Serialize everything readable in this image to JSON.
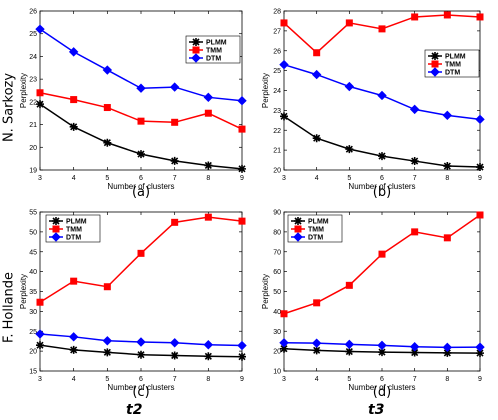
{
  "row_labels": [
    "N. Sarkozy",
    "F. Hollande"
  ],
  "column_labels": [
    "t2",
    "t3"
  ],
  "colors": {
    "PLMM": "#000000",
    "TMM": "#ff0000",
    "DTM": "#0000ff"
  },
  "chart_data": [
    {
      "type": "line",
      "panel_label": "(a)",
      "xlabel": "Number of clusters",
      "ylabel": "Perplexity",
      "x": [
        3,
        4,
        5,
        6,
        7,
        8,
        9
      ],
      "xlim": [
        3,
        9
      ],
      "ylim": [
        19,
        26
      ],
      "yticks": [
        19,
        20,
        21,
        22,
        23,
        24,
        25,
        26
      ],
      "legend_position": "top-right",
      "series": [
        {
          "name": "PLMM",
          "marker": "star",
          "values": [
            21.9,
            20.9,
            20.2,
            19.7,
            19.4,
            19.2,
            19.05
          ]
        },
        {
          "name": "TMM",
          "marker": "square",
          "values": [
            22.4,
            22.1,
            21.75,
            21.15,
            21.1,
            21.5,
            20.8
          ]
        },
        {
          "name": "DTM",
          "marker": "diamond",
          "values": [
            25.2,
            24.2,
            23.4,
            22.6,
            22.65,
            22.2,
            22.05
          ]
        }
      ]
    },
    {
      "type": "line",
      "panel_label": "(b)",
      "xlabel": "Number of clusters",
      "ylabel": "Perplexity",
      "x": [
        3,
        4,
        5,
        6,
        7,
        8,
        9
      ],
      "xlim": [
        3,
        9
      ],
      "ylim": [
        20,
        28
      ],
      "yticks": [
        20,
        21,
        22,
        23,
        24,
        25,
        26,
        27,
        28
      ],
      "legend_position": "middle-right",
      "series": [
        {
          "name": "PLMM",
          "marker": "star",
          "values": [
            22.7,
            21.6,
            21.05,
            20.7,
            20.45,
            20.2,
            20.15
          ]
        },
        {
          "name": "TMM",
          "marker": "square",
          "values": [
            27.4,
            25.9,
            27.4,
            27.1,
            27.7,
            27.8,
            27.7
          ]
        },
        {
          "name": "DTM",
          "marker": "diamond",
          "values": [
            25.3,
            24.8,
            24.2,
            23.75,
            23.05,
            22.75,
            22.55
          ]
        }
      ]
    },
    {
      "type": "line",
      "panel_label": "(c)",
      "xlabel": "Number of clusters",
      "ylabel": "Perplexity",
      "x": [
        3,
        4,
        5,
        6,
        7,
        8,
        9
      ],
      "xlim": [
        3,
        9
      ],
      "ylim": [
        15,
        55
      ],
      "yticks": [
        15,
        20,
        25,
        30,
        35,
        40,
        45,
        50,
        55
      ],
      "legend_position": "top-left",
      "series": [
        {
          "name": "PLMM",
          "marker": "star",
          "values": [
            21.5,
            20.3,
            19.7,
            19.1,
            18.9,
            18.7,
            18.6
          ]
        },
        {
          "name": "TMM",
          "marker": "square",
          "values": [
            32.3,
            37.6,
            36.2,
            44.6,
            52.4,
            53.7,
            52.7
          ]
        },
        {
          "name": "DTM",
          "marker": "diamond",
          "values": [
            24.3,
            23.6,
            22.6,
            22.3,
            22.1,
            21.6,
            21.4
          ]
        }
      ]
    },
    {
      "type": "line",
      "panel_label": "(d)",
      "xlabel": "Number of clusters",
      "ylabel": "Perplexity",
      "x": [
        3,
        4,
        5,
        6,
        7,
        8,
        9
      ],
      "xlim": [
        3,
        9
      ],
      "ylim": [
        10,
        90
      ],
      "yticks": [
        10,
        20,
        30,
        40,
        50,
        60,
        70,
        80,
        90
      ],
      "legend_position": "top-left",
      "series": [
        {
          "name": "PLMM",
          "marker": "star",
          "values": [
            21.2,
            20.4,
            19.8,
            19.5,
            19.3,
            19.1,
            19.0
          ]
        },
        {
          "name": "TMM",
          "marker": "square",
          "values": [
            38.8,
            44.3,
            53.1,
            68.8,
            80.0,
            77.0,
            88.5
          ]
        },
        {
          "name": "DTM",
          "marker": "diamond",
          "values": [
            24.2,
            24.0,
            23.4,
            22.9,
            22.2,
            21.9,
            22.0
          ]
        }
      ]
    }
  ]
}
